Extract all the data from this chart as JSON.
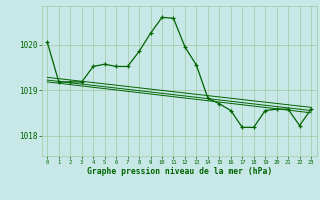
{
  "title": "Graphe pression niveau de la mer (hPa)",
  "background_color": "#c8e8e8",
  "grid_color": "#a0c8a0",
  "line_color": "#006400",
  "xlim": [
    -0.5,
    23.5
  ],
  "ylim": [
    1017.55,
    1020.85
  ],
  "yticks": [
    1018,
    1019,
    1020
  ],
  "xticks": [
    0,
    1,
    2,
    3,
    4,
    5,
    6,
    7,
    8,
    9,
    10,
    11,
    12,
    13,
    14,
    15,
    16,
    17,
    18,
    19,
    20,
    21,
    22,
    23
  ],
  "series1": [
    [
      0,
      1020.05
    ],
    [
      1,
      1019.18
    ],
    [
      2,
      1019.18
    ],
    [
      3,
      1019.18
    ],
    [
      4,
      1019.52
    ],
    [
      5,
      1019.57
    ],
    [
      6,
      1019.52
    ],
    [
      7,
      1019.52
    ],
    [
      8,
      1019.85
    ],
    [
      9,
      1020.25
    ],
    [
      10,
      1020.6
    ],
    [
      11,
      1020.58
    ],
    [
      12,
      1019.95
    ],
    [
      13,
      1019.55
    ],
    [
      14,
      1018.82
    ],
    [
      15,
      1018.7
    ],
    [
      16,
      1018.55
    ],
    [
      17,
      1018.18
    ],
    [
      18,
      1018.18
    ],
    [
      19,
      1018.55
    ],
    [
      20,
      1018.58
    ],
    [
      21,
      1018.58
    ],
    [
      22,
      1018.22
    ],
    [
      23,
      1018.58
    ]
  ],
  "series2": [
    [
      0,
      1019.22
    ],
    [
      23,
      1018.55
    ]
  ],
  "series3": [
    [
      0,
      1019.28
    ],
    [
      23,
      1018.62
    ]
  ],
  "series4": [
    [
      0,
      1019.18
    ],
    [
      23,
      1018.5
    ]
  ]
}
